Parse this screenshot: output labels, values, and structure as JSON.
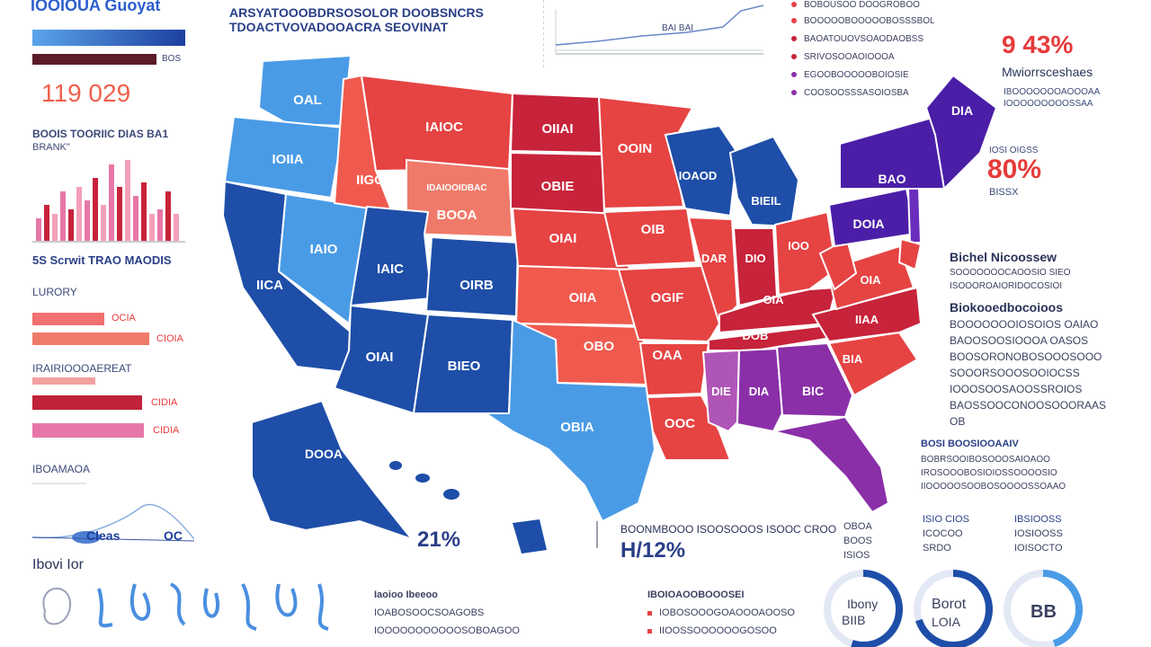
{
  "colors": {
    "red": "#e64343",
    "light_red": "#f07a6a",
    "dark_red": "#c7233a",
    "blue": "#1e4ea8",
    "light_blue": "#4a9be6",
    "purple": "#8a2fa8",
    "indigo": "#4b1ea8",
    "pink": "#e777a8"
  },
  "left_panel": {
    "title": "IOOIOUA Guoyat",
    "big_number": "119 029",
    "section1_title": "BOOIS TOORIIC DIAS BA1",
    "section1_sub": "BRANK\"",
    "histogram_caption": "5S Scrwit TRAO MAODIS",
    "section2_title": "LURORY",
    "bar_label_1": "OCIA",
    "bar_label_2": "CIOIA",
    "section3_title": "IRAIRIOOOAEREAT",
    "bar_label_3": "CIDIA",
    "bar_label_4": "CIDIA",
    "section4_title": "IBOAMAOA",
    "chart_label": "Cleas",
    "chart_label_2": "OC",
    "footer_title": "Ibovi Ior",
    "bar_label_top": "BOS"
  },
  "top_header": {
    "line1": "ARSYATOOOBDRSOSOLOR DOOBSNCRS",
    "line2": "TDOACTVOVADOOACRA SEOVINAT",
    "chart_caption": "BAI BAI"
  },
  "map_labels": {
    "wa": "OAL",
    "or": "IOIIA",
    "ca": "IICA",
    "nv": "IAIO",
    "id": "IIGO",
    "mt": "IAIOC",
    "wy_line1": "IDAIOOIDBAC",
    "wy_line2": "BOOA",
    "ut": "IAIC",
    "co": "OIRB",
    "az": "OIAI",
    "nm": "BIEO",
    "nd": "OIIAI",
    "sd": "OBIE",
    "ne": "OIAI",
    "ks": "OIIA",
    "ok": "OBO",
    "tx": "OBIA",
    "mn": "OOIN",
    "ia": "OIB",
    "mo": "OGIF",
    "ar": "OAA",
    "la": "OOC",
    "wi": "IOAOD",
    "mi": "BIEIL",
    "il": "DAR",
    "in": "DIO",
    "oh": "IOO",
    "ky": "OIA",
    "tn": "DOB",
    "ms": "DIE",
    "al": "DIA",
    "ga": "BIC",
    "va": "OIA",
    "nc": "IIAA",
    "sc": "BIA",
    "pa": "DOIA",
    "ny": "BAO",
    "me": "DIA",
    "ak": "DOOA",
    "hi_pct": "21%",
    "bottom_pct": "H/12%"
  },
  "right_panel": {
    "legend": [
      "BOBOUSOO DOOGROBOO",
      "BOOOOOBOOOOOBOSSSBOL",
      "BAOATOUOVSOAODAOBSS",
      "SRIVOSOOAOIOOOA",
      "EGOOBOOOOOBOIOSIE",
      "COOSOOSSSASOIOSBA"
    ],
    "stat1_value": "9 43%",
    "stat1_title": "Mwiorrsceshaes",
    "stat1_line1": "IBOOOOOOOAOOOAA",
    "stat1_line2": "IOOOOOOOOOSSAA",
    "stat2_label": "IOSI OIGSS",
    "stat2_value": "80%",
    "stat2_sub": "BISSX",
    "block1_title": "Bichel Nicoossew",
    "block1_lines": [
      "SOOOOOOOCAOOSIO SIEO",
      "ISOOOROAIORIDOCOSIOI"
    ],
    "block2_title": "Biokooedbocoioos",
    "block2_lines": [
      "BOOOOOOOIOSOIOS OAIAO",
      "BAOOSOOSIOOOA OASOS",
      "BOOSORONOBOSOOOSOOO",
      "SOOORSOOOSOOIOCSS",
      "IOOOSOOSAOOSSROIOS",
      "BAOSSOOCONOOSOOORAAS",
      "OB"
    ],
    "block3_title": "BOSI BOOSIOOAAIV",
    "block3_lines": [
      "BOBRSOOIBOSOOOSAIOAOO",
      "IROSOOOBOSIOIOSSOOOOSIO",
      "IIOOOOOSOOBOSOOOOSSOAAO"
    ]
  },
  "bottom": {
    "col1_title": "OBOA",
    "col1_lines": [
      "BOOS",
      "ISIOS"
    ],
    "col2_title": "ISIO CIOS",
    "col2_lines": [
      "ICOCOO",
      "SRDO"
    ],
    "col3_title": "IBSIOOSS",
    "col3_lines": [
      "IOSIOOSS",
      "IOISOCTO"
    ],
    "center_title": "Iaoioo Ibeeoo",
    "center_lines": [
      "IOABOSOOCSOAGOBS",
      "IOOOOOOOOOOOSOBOAGOO"
    ],
    "center2_title": "IBOIOAOOBOOOSEI",
    "center2_lines": [
      "IOBOSOOOGOAOOOAOOSO",
      "IIOOSSOOOOOOGOSOO"
    ],
    "caption_line": "BOONMBOOO ISOOSOOOS ISOOC CROO",
    "donut1_label": "Ibony",
    "donut1_value": "BIIB",
    "donut2_label": "Borot",
    "donut2_value": "LOIA",
    "donut3_value": "BB",
    "donut1_fraction": 0.55,
    "donut2_fraction": 0.7,
    "donut3_fraction": 0.45
  }
}
